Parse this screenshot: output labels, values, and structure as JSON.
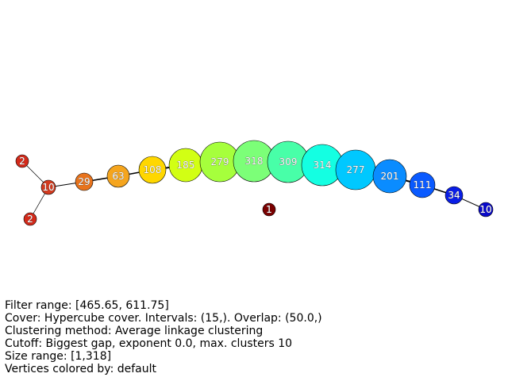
{
  "graph": {
    "nodes": [
      {
        "id": "n0",
        "label": "2",
        "color": "#d42a1a"
      },
      {
        "id": "n1",
        "label": "2",
        "color": "#d42a1a"
      },
      {
        "id": "n2",
        "label": "10",
        "color": "#d53a1e"
      },
      {
        "id": "n3",
        "label": "29",
        "color": "#e8731c"
      },
      {
        "id": "n4",
        "label": "63",
        "color": "#f5a51e"
      },
      {
        "id": "n5",
        "label": "108",
        "color": "#ffd700"
      },
      {
        "id": "n6",
        "label": "185",
        "color": "#d2ff14"
      },
      {
        "id": "n7",
        "label": "279",
        "color": "#a6ff3c"
      },
      {
        "id": "n8",
        "label": "318",
        "color": "#7cff78"
      },
      {
        "id": "n9",
        "label": "309",
        "color": "#48ffa8"
      },
      {
        "id": "n10",
        "label": "314",
        "color": "#14ffe2"
      },
      {
        "id": "n11",
        "label": "277",
        "color": "#00c8ff"
      },
      {
        "id": "n12",
        "label": "201",
        "color": "#0a8cff"
      },
      {
        "id": "n13",
        "label": "111",
        "color": "#0a5aff"
      },
      {
        "id": "n14",
        "label": "34",
        "color": "#0a1ee6"
      },
      {
        "id": "n15",
        "label": "10",
        "color": "#0a0acc"
      },
      {
        "id": "n16",
        "label": "1",
        "color": "#7a0000"
      }
    ],
    "edges": [
      {
        "from": "n0",
        "to": "n2",
        "weight": 0.7
      },
      {
        "from": "n1",
        "to": "n2",
        "weight": 0.7
      },
      {
        "from": "n2",
        "to": "n3",
        "weight": 1.0
      },
      {
        "from": "n3",
        "to": "n4",
        "weight": 1.6
      },
      {
        "from": "n4",
        "to": "n5",
        "weight": 1.6
      },
      {
        "from": "n5",
        "to": "n6",
        "weight": 2.0
      },
      {
        "from": "n6",
        "to": "n7",
        "weight": 2.0
      },
      {
        "from": "n7",
        "to": "n8",
        "weight": 2.0
      },
      {
        "from": "n8",
        "to": "n9",
        "weight": 2.0
      },
      {
        "from": "n9",
        "to": "n10",
        "weight": 2.0
      },
      {
        "from": "n10",
        "to": "n11",
        "weight": 2.0
      },
      {
        "from": "n11",
        "to": "n12",
        "weight": 2.0
      },
      {
        "from": "n12",
        "to": "n13",
        "weight": 2.0
      },
      {
        "from": "n13",
        "to": "n14",
        "weight": 1.6
      },
      {
        "from": "n14",
        "to": "n15",
        "weight": 1.0
      }
    ]
  },
  "info": {
    "filter_range": "Filter range: [465.65, 611.75]",
    "cover": "Cover: Hypercube cover. Intervals: (15,). Overlap: (50.0,)",
    "clustering": "Clustering method: Average linkage clustering",
    "cutoff": "Cutoff: Biggest gap, exponent 0.0, max. clusters 10",
    "size_range": "Size range: [1,318]",
    "vertices": "Vertices colored by: default"
  }
}
